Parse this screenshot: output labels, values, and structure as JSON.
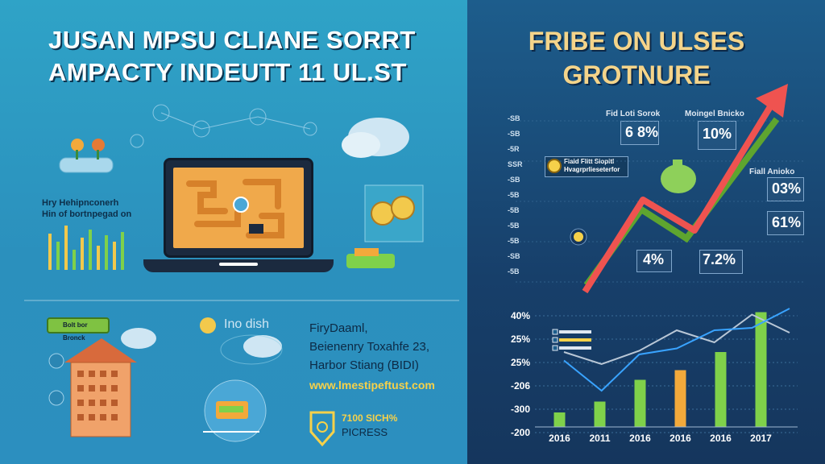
{
  "left_panel": {
    "title_line1": "JUSAN MPSU CLIANE SORRT",
    "title_line2": "AMPACTY INDEUTT 11 UL.ST",
    "side_caption_line1": "Hry Hehipnconerh",
    "side_caption_line2": "Hin of bortnpegad on",
    "green_tag_text": "Bolt bor Bronck",
    "map_label": "Ino dish",
    "info_lines": [
      "FiryDaaml,",
      "Beienenry Toxahfe 23,",
      "Harbor Stiang (BIDI)"
    ],
    "link_text": "www.lmestipeftust.com",
    "badge_title": "7100 SICH%",
    "badge_sub": "PICRESS"
  },
  "right_panel": {
    "title_line1": "FRIBE ON ULSES",
    "title_line2": "GROTNURE",
    "stats": [
      {
        "label": "Fid Loti Sorok",
        "value": "6 8%"
      },
      {
        "label": "Moingel Bnicko",
        "value": "10%"
      },
      {
        "label": "Fiall Anioko",
        "value": "03%"
      },
      {
        "label": "",
        "value": "61%"
      },
      {
        "label": "",
        "value": "4%"
      },
      {
        "label": "",
        "value": "7.2%"
      }
    ],
    "note_text": "Fiaid Flitt Siopitl Hvagrprlieseterfor",
    "left_ticks": [
      "-SB",
      "-SB",
      "-5R",
      "SSR",
      "-SB",
      "-5B",
      "-5B",
      "-5B",
      "-5B",
      "-SB",
      "-5B"
    ]
  },
  "colors": {
    "arrow": "#ef5350",
    "arrow_shadow": "#5ea52f",
    "bar_green": "#7fd14a",
    "bar_orange": "#f2a93b",
    "line_white": "#b9c7d6",
    "line_blue": "#39a3ff"
  },
  "chart_data": {
    "type": "bar",
    "categories": [
      "2016",
      "2011",
      "2016",
      "2016",
      "2016",
      "2017"
    ],
    "values": [
      12,
      21,
      39,
      47,
      62,
      95
    ],
    "bar_colors": [
      "green",
      "green",
      "green",
      "orange",
      "green",
      "green"
    ],
    "ytick_labels": [
      "40%",
      "25%",
      "25%",
      "-206",
      "-300",
      "-200"
    ],
    "legend": "top-left",
    "line_series": [
      {
        "values": [
          62,
          52,
          63,
          80,
          70,
          93,
          78
        ]
      },
      {
        "values": [
          55,
          30,
          60,
          65,
          80,
          82,
          98
        ]
      }
    ]
  }
}
